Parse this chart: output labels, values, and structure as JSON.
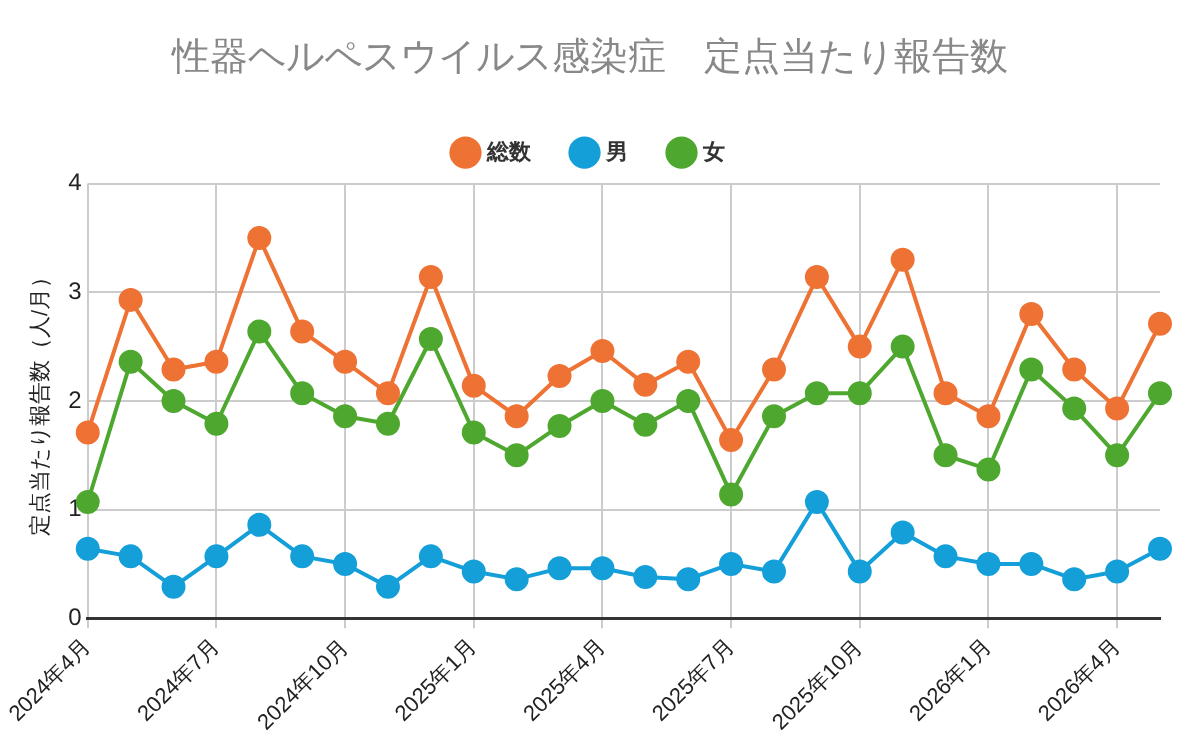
{
  "chart_data": {
    "type": "line",
    "title": "性器ヘルペスウイルス感染症　定点当たり報告数",
    "ylabel": "定点当たり報告数（人/月）",
    "categories": [
      "2024年4月",
      null,
      null,
      "2024年7月",
      null,
      null,
      "2024年10月",
      null,
      null,
      "2025年1月",
      null,
      null,
      "2025年4月",
      null,
      null,
      "2025年7月",
      null,
      null,
      "2025年10月",
      null,
      null,
      "2026年1月",
      null,
      null,
      "2026年4月",
      null
    ],
    "series": [
      {
        "name": "総数",
        "color": "#ed7233",
        "values": [
          1.71,
          2.93,
          2.29,
          2.36,
          3.5,
          2.64,
          2.36,
          2.07,
          3.14,
          2.14,
          1.86,
          2.23,
          2.46,
          2.15,
          2.36,
          1.64,
          2.29,
          3.14,
          2.5,
          3.3,
          2.07,
          1.86,
          2.8,
          2.29,
          1.93,
          2.71
        ]
      },
      {
        "name": "男",
        "color": "#149fd8",
        "values": [
          0.64,
          0.57,
          0.29,
          0.57,
          0.86,
          0.57,
          0.5,
          0.29,
          0.57,
          0.43,
          0.36,
          0.46,
          0.46,
          0.38,
          0.36,
          0.5,
          0.43,
          1.07,
          0.43,
          0.79,
          0.57,
          0.5,
          0.5,
          0.36,
          0.43,
          0.64
        ]
      },
      {
        "name": "女",
        "color": "#4ea72f",
        "values": [
          1.07,
          2.36,
          2.0,
          1.79,
          2.64,
          2.07,
          1.86,
          1.79,
          2.57,
          1.71,
          1.5,
          1.77,
          2.0,
          1.78,
          2.0,
          1.14,
          1.86,
          2.07,
          2.07,
          2.5,
          1.5,
          1.37,
          2.29,
          1.93,
          1.5,
          2.07
        ]
      }
    ],
    "ylim": [
      0,
      4
    ],
    "yticks": [
      0,
      1,
      2,
      3,
      4
    ],
    "grid": true,
    "legend": "top",
    "marker": "circle",
    "line_style": "solid"
  }
}
